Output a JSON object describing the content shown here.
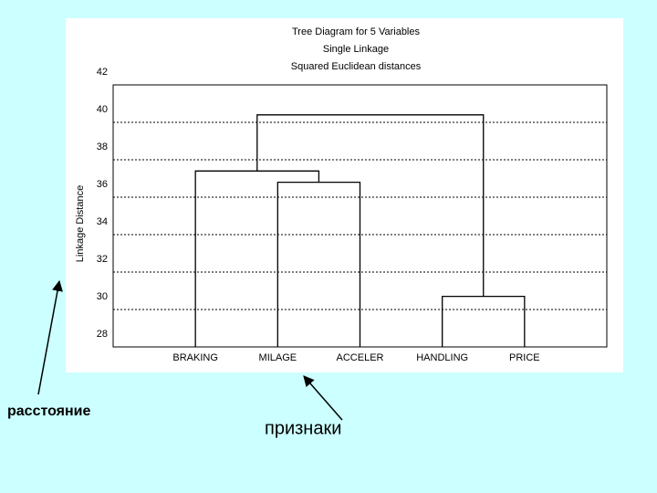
{
  "chart_data": {
    "type": "dendrogram",
    "title": [
      "Tree Diagram for 5 Variables",
      "Single Linkage",
      "Squared Euclidean distances"
    ],
    "ylabel": "Linkage Distance",
    "categories": [
      "BRAKING",
      "MILAGE",
      "ACCELER",
      "HANDLING",
      "PRICE"
    ],
    "merges": [
      {
        "children": [
          1,
          2
        ],
        "height": 36.8
      },
      {
        "children": [
          0,
          5
        ],
        "height": 37.4
      },
      {
        "children": [
          3,
          4
        ],
        "height": 30.7
      },
      {
        "children": [
          6,
          7
        ],
        "height": 40.4
      }
    ],
    "ylim": [
      28,
      42
    ],
    "yticks": [
      28,
      30,
      32,
      34,
      36,
      38,
      40,
      42
    ],
    "grid": true,
    "color": "#000000"
  },
  "annotations": [
    "расстояние",
    "признаки"
  ]
}
